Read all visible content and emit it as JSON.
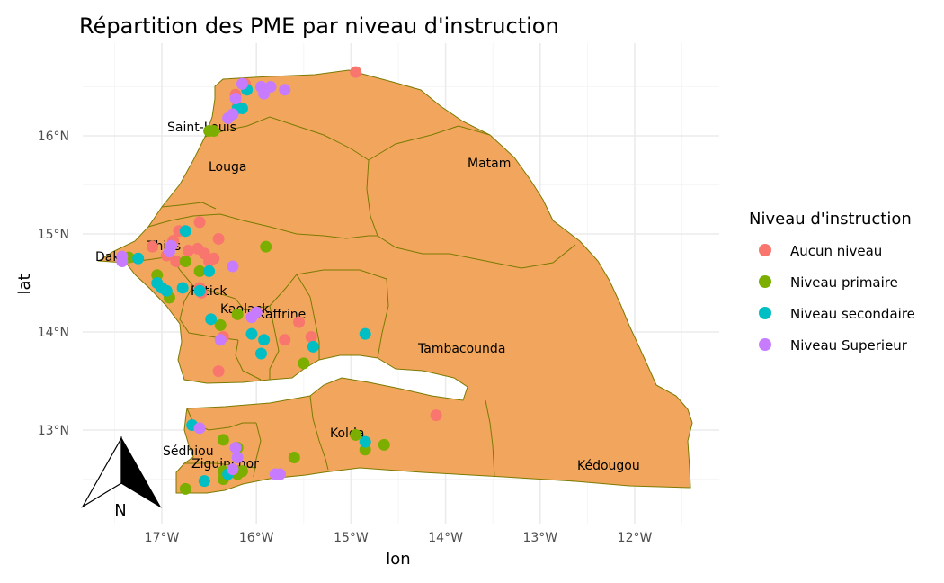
{
  "title": "Répartition des PME par niveau d'instruction",
  "axes": {
    "xlabel": "lon",
    "ylabel": "lat",
    "x_ticks": [
      "17°W",
      "16°W",
      "15°W",
      "14°W",
      "13°W",
      "12°W"
    ],
    "y_ticks": [
      "16°N",
      "15°N",
      "14°N",
      "13°N"
    ]
  },
  "map": {
    "fill_color": "#f2a65d",
    "border_color": "#7a7a00",
    "regions": [
      "Saint-Louis",
      "Louga",
      "Matam",
      "Dakar",
      "Thiès",
      "Fatick",
      "Kaolack",
      "Kaffrine",
      "Tambacounda",
      "Kolda",
      "Sédhiou",
      "Ziguinchor",
      "Kédougou"
    ]
  },
  "region_labels": {
    "saint_louis": "Saint-Louis",
    "louga": "Louga",
    "matam": "Matam",
    "dakar": "Dakar",
    "thies": "Thiès",
    "fatick": "Fatick",
    "kaolack": "Kaolack",
    "kaffrine": "Kaffrine",
    "tambacounda": "Tambacounda",
    "kolda": "Kolda",
    "sedhiou": "Sédhiou",
    "ziguinchor": "Ziguinchor",
    "kedougou": "Kédougou"
  },
  "legend": {
    "title": "Niveau d'instruction",
    "items": [
      {
        "label": "Aucun niveau",
        "color": "#f8766d"
      },
      {
        "label": "Niveau primaire",
        "color": "#7cae00"
      },
      {
        "label": "Niveau secondaire",
        "color": "#00bfc4"
      },
      {
        "label": "Niveau Superieur",
        "color": "#c77cff"
      }
    ]
  },
  "north_arrow": {
    "label": "N"
  },
  "chart_data": {
    "type": "scatter",
    "title": "Répartition des PME par niveau d'instruction",
    "xlabel": "lon",
    "ylabel": "lat",
    "xlim": [
      -17.75,
      -11.35
    ],
    "ylim": [
      12.2,
      16.9
    ],
    "series": [
      {
        "name": "Aucun niveau",
        "color": "#f8766d",
        "points": [
          [
            -14.95,
            16.65
          ],
          [
            -16.12,
            16.53
          ],
          [
            -16.22,
            16.42
          ],
          [
            -16.2,
            16.3
          ],
          [
            -16.82,
            15.03
          ],
          [
            -16.6,
            15.12
          ],
          [
            -16.88,
            14.93
          ],
          [
            -17.1,
            14.87
          ],
          [
            -16.4,
            14.95
          ],
          [
            -16.62,
            14.85
          ],
          [
            -16.55,
            14.8
          ],
          [
            -16.72,
            14.83
          ],
          [
            -16.95,
            14.78
          ],
          [
            -16.45,
            14.75
          ],
          [
            -16.85,
            14.72
          ],
          [
            -16.5,
            14.72
          ],
          [
            -16.6,
            14.45
          ],
          [
            -16.58,
            14.4
          ],
          [
            -16.35,
            13.95
          ],
          [
            -16.4,
            13.6
          ],
          [
            -15.55,
            14.1
          ],
          [
            -15.42,
            13.95
          ],
          [
            -15.7,
            13.92
          ],
          [
            -14.1,
            13.15
          ]
        ]
      },
      {
        "name": "Niveau primaire",
        "color": "#7cae00",
        "points": [
          [
            -16.5,
            16.05
          ],
          [
            -16.45,
            16.05
          ],
          [
            -17.35,
            14.76
          ],
          [
            -17.05,
            14.58
          ],
          [
            -16.92,
            14.35
          ],
          [
            -16.75,
            14.72
          ],
          [
            -16.6,
            14.62
          ],
          [
            -15.9,
            14.87
          ],
          [
            -16.38,
            14.07
          ],
          [
            -16.2,
            14.18
          ],
          [
            -15.5,
            13.68
          ],
          [
            -16.35,
            12.9
          ],
          [
            -16.2,
            12.82
          ],
          [
            -16.35,
            12.58
          ],
          [
            -16.15,
            12.58
          ],
          [
            -16.35,
            12.5
          ],
          [
            -16.2,
            12.55
          ],
          [
            -16.75,
            12.4
          ],
          [
            -15.6,
            12.72
          ],
          [
            -14.95,
            12.95
          ],
          [
            -14.85,
            12.8
          ],
          [
            -14.65,
            12.85
          ]
        ]
      },
      {
        "name": "Niveau secondaire",
        "color": "#00bfc4",
        "points": [
          [
            -16.1,
            16.47
          ],
          [
            -16.15,
            16.28
          ],
          [
            -16.2,
            16.28
          ],
          [
            -16.75,
            15.03
          ],
          [
            -17.25,
            14.75
          ],
          [
            -17.05,
            14.5
          ],
          [
            -17.0,
            14.45
          ],
          [
            -16.95,
            14.42
          ],
          [
            -16.78,
            14.45
          ],
          [
            -16.6,
            14.42
          ],
          [
            -16.5,
            14.62
          ],
          [
            -16.48,
            14.13
          ],
          [
            -16.05,
            13.98
          ],
          [
            -15.92,
            13.92
          ],
          [
            -15.95,
            13.78
          ],
          [
            -15.4,
            13.85
          ],
          [
            -14.85,
            13.98
          ],
          [
            -16.55,
            12.48
          ],
          [
            -16.3,
            12.55
          ],
          [
            -16.68,
            13.05
          ],
          [
            -14.85,
            12.88
          ]
        ]
      },
      {
        "name": "Niveau Superieur",
        "color": "#c77cff",
        "points": [
          [
            -16.15,
            16.53
          ],
          [
            -15.95,
            16.5
          ],
          [
            -15.85,
            16.5
          ],
          [
            -15.92,
            16.43
          ],
          [
            -15.7,
            16.47
          ],
          [
            -16.22,
            16.38
          ],
          [
            -16.25,
            16.22
          ],
          [
            -16.3,
            16.18
          ],
          [
            -17.42,
            14.72
          ],
          [
            -17.42,
            14.77
          ],
          [
            -16.92,
            14.82
          ],
          [
            -16.9,
            14.88
          ],
          [
            -16.25,
            14.67
          ],
          [
            -16.05,
            14.15
          ],
          [
            -16.0,
            14.2
          ],
          [
            -16.38,
            13.92
          ],
          [
            -16.6,
            13.02
          ],
          [
            -16.22,
            12.82
          ],
          [
            -16.2,
            12.72
          ],
          [
            -16.25,
            12.6
          ],
          [
            -15.8,
            12.55
          ],
          [
            -15.75,
            12.55
          ]
        ]
      }
    ]
  }
}
